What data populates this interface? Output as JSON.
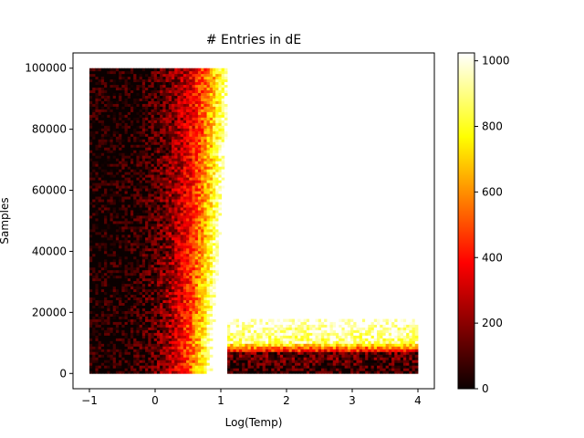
{
  "chart_data": {
    "type": "heatmap",
    "title": "# Entries in dE",
    "xlabel": "Log(Temp)",
    "ylabel": "Samples",
    "xlim": [
      -1.25,
      4.25
    ],
    "ylim": [
      -5000,
      105000
    ],
    "x_data_range": [
      -1,
      4
    ],
    "y_data_range": [
      0,
      100000
    ],
    "xticks": [
      -1,
      0,
      1,
      2,
      3,
      4
    ],
    "xtick_labels": [
      "−1",
      "0",
      "1",
      "2",
      "3",
      "4"
    ],
    "yticks": [
      0,
      20000,
      40000,
      60000,
      80000,
      100000
    ],
    "ytick_labels": [
      "0",
      "20000",
      "40000",
      "60000",
      "80000",
      "100000"
    ],
    "colorbar": {
      "colormap": "hot",
      "range": [
        0,
        1024
      ],
      "ticks": [
        0,
        200,
        400,
        600,
        800,
        1000
      ],
      "tick_labels": [
        "0",
        "200",
        "400",
        "600",
        "800",
        "1000"
      ]
    },
    "grid": false,
    "pattern_description_values": {
      "low_temp_region_max_logT": 0.6,
      "transition_logT_at_top": 0.9,
      "transition_samples_at_high_logT": 10000,
      "high_logT_band_low_value_max_samples": 7000,
      "high_logT_band_saturated_max_samples": 18000
    }
  }
}
